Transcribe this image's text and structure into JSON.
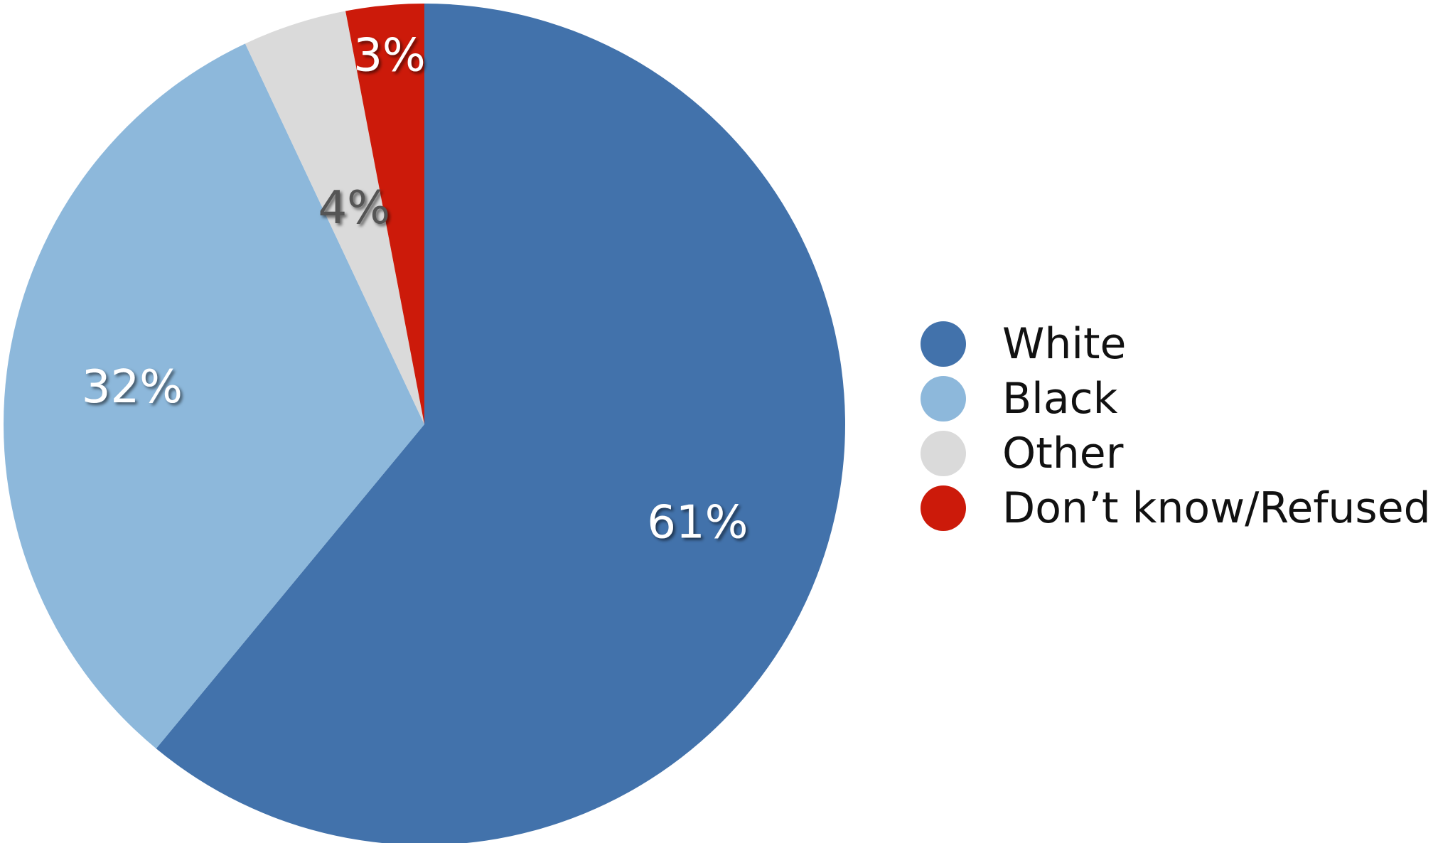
{
  "chart_data": {
    "type": "pie",
    "start_angle_deg": 0,
    "direction": "clockwise",
    "legend_position": "right",
    "slices": [
      {
        "name": "White",
        "value": 61,
        "label": "61%",
        "color": "#4272ab",
        "label_color": "#ffffff"
      },
      {
        "name": "Black",
        "value": 32,
        "label": "32%",
        "color": "#8db8db",
        "label_color": "#ffffff"
      },
      {
        "name": "Other",
        "value": 4,
        "label": "4%",
        "color": "#dadada",
        "label_color": "#555555"
      },
      {
        "name": "Don’t know/Refused",
        "value": 3,
        "label": "3%",
        "color": "#cc1a0a",
        "label_color": "#ffffff"
      }
    ]
  }
}
